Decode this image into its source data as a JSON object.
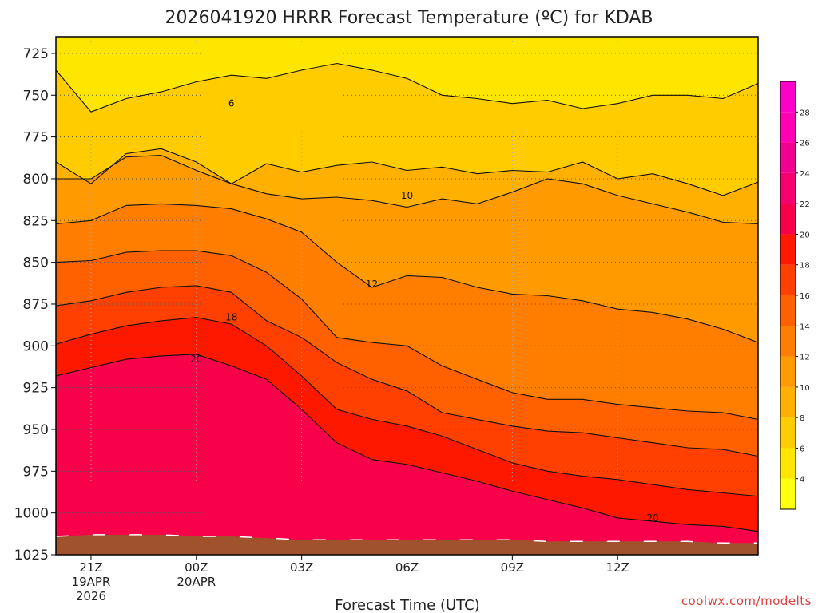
{
  "chart_data": {
    "type": "heatmap",
    "title": "2026041920 HRRR Forecast Temperature (ºC) for KDAB",
    "xlabel": "Forecast Time (UTC)",
    "ylabel": "",
    "x_hours": [
      -1,
      0,
      1,
      2,
      3,
      4,
      5,
      6,
      7,
      8,
      9,
      10,
      11,
      12,
      13,
      14,
      15,
      16,
      17,
      18,
      19
    ],
    "xlim": [
      -1,
      19
    ],
    "x_ticks": [
      {
        "hour": 0,
        "line1": "21Z",
        "line2": "19APR",
        "line3": "2026"
      },
      {
        "hour": 3,
        "line1": "00Z",
        "line2": "20APR",
        "line3": ""
      },
      {
        "hour": 6,
        "line1": "03Z",
        "line2": "",
        "line3": ""
      },
      {
        "hour": 9,
        "line1": "06Z",
        "line2": "",
        "line3": ""
      },
      {
        "hour": 12,
        "line1": "09Z",
        "line2": "",
        "line3": ""
      },
      {
        "hour": 15,
        "line1": "12Z",
        "line2": "",
        "line3": ""
      }
    ],
    "pressure_levels": [
      725,
      750,
      775,
      800,
      825,
      850,
      875,
      900,
      925,
      950,
      975,
      1000
    ],
    "y_ticks": [
      "725",
      "750",
      "775",
      "800",
      "825",
      "850",
      "875",
      "900",
      "925",
      "950",
      "975",
      "1000",
      "1025"
    ],
    "ylim": [
      715,
      1025
    ],
    "temperature_isotherm_pressures_hPa": [
      {
        "temp": 6,
        "p": [
          735,
          760,
          752,
          748,
          742,
          738,
          740,
          735,
          731,
          735,
          740,
          750,
          752,
          755,
          753,
          758,
          755,
          750,
          750,
          752,
          743
        ]
      },
      {
        "temp": 8,
        "p": [
          790,
          803,
          785,
          782,
          790,
          803,
          791,
          796,
          792,
          790,
          795,
          793,
          797,
          795,
          796,
          790,
          800,
          797,
          803,
          810,
          802
        ]
      },
      {
        "temp": 10,
        "p": [
          800,
          800,
          787,
          786,
          795,
          803,
          809,
          812,
          811,
          813,
          817,
          812,
          815,
          808,
          800,
          803,
          810,
          815,
          820,
          826,
          827
        ]
      },
      {
        "temp": 12,
        "p": [
          827,
          825,
          816,
          815,
          816,
          818,
          824,
          832,
          850,
          865,
          858,
          859,
          865,
          869,
          870,
          873,
          878,
          880,
          884,
          890,
          898
        ]
      },
      {
        "temp": 14,
        "p": [
          850,
          849,
          844,
          843,
          843,
          846,
          856,
          872,
          895,
          898,
          900,
          912,
          920,
          928,
          932,
          932,
          935,
          937,
          939,
          940,
          944
        ]
      },
      {
        "temp": 16,
        "p": [
          876,
          873,
          868,
          865,
          864,
          868,
          885,
          895,
          910,
          920,
          927,
          940,
          944,
          948,
          951,
          952,
          955,
          958,
          961,
          962,
          966
        ]
      },
      {
        "temp": 18,
        "p": [
          899,
          893,
          888,
          885,
          883,
          887,
          900,
          918,
          938,
          944,
          948,
          954,
          962,
          970,
          975,
          978,
          980,
          983,
          986,
          988,
          990
        ]
      },
      {
        "temp": 20,
        "p": [
          918,
          913,
          908,
          906,
          905,
          912,
          920,
          938,
          958,
          968,
          971,
          976,
          981,
          987,
          992,
          997,
          1003,
          1005,
          1007,
          1008,
          1011
        ]
      }
    ],
    "contour_labels": [
      {
        "text": "6",
        "hour": 4.0,
        "p": 755
      },
      {
        "text": "10",
        "hour": 9.0,
        "p": 810
      },
      {
        "text": "12",
        "hour": 8.0,
        "p": 863
      },
      {
        "text": "18",
        "hour": 4.0,
        "p": 883
      },
      {
        "text": "20",
        "hour": 3.0,
        "p": 908
      },
      {
        "text": "20",
        "hour": 16.0,
        "p": 1003
      }
    ],
    "surface_pressure_hPa": [
      1014,
      1013,
      1013,
      1013,
      1014,
      1014,
      1015,
      1016,
      1016,
      1016,
      1016,
      1016,
      1016,
      1016,
      1017,
      1017,
      1017,
      1017,
      1017,
      1018,
      1018
    ],
    "colorbar": {
      "ticks": [
        "4",
        "6",
        "8",
        "10",
        "12",
        "14",
        "16",
        "18",
        "20",
        "22",
        "24",
        "26",
        "28"
      ],
      "bands": [
        {
          "from": 2,
          "to": 4,
          "color": "#ffff10"
        },
        {
          "from": 4,
          "to": 6,
          "color": "#ffe600"
        },
        {
          "from": 6,
          "to": 8,
          "color": "#ffcc00"
        },
        {
          "from": 8,
          "to": 10,
          "color": "#ffb000"
        },
        {
          "from": 10,
          "to": 12,
          "color": "#ff9a00"
        },
        {
          "from": 12,
          "to": 14,
          "color": "#ff7e00"
        },
        {
          "from": 14,
          "to": 16,
          "color": "#ff6000"
        },
        {
          "from": 16,
          "to": 18,
          "color": "#ff4000"
        },
        {
          "from": 18,
          "to": 20,
          "color": "#ff1800"
        },
        {
          "from": 20,
          "to": 22,
          "color": "#f8004a"
        },
        {
          "from": 22,
          "to": 24,
          "color": "#f5006e"
        },
        {
          "from": 24,
          "to": 26,
          "color": "#f20090"
        },
        {
          "from": 26,
          "to": 28,
          "color": "#ff00b4"
        },
        {
          "from": 28,
          "to": 30,
          "color": "#ff00c8"
        }
      ]
    },
    "ground_color": "#a0522d",
    "credit": "coolwx.com/modelts"
  }
}
